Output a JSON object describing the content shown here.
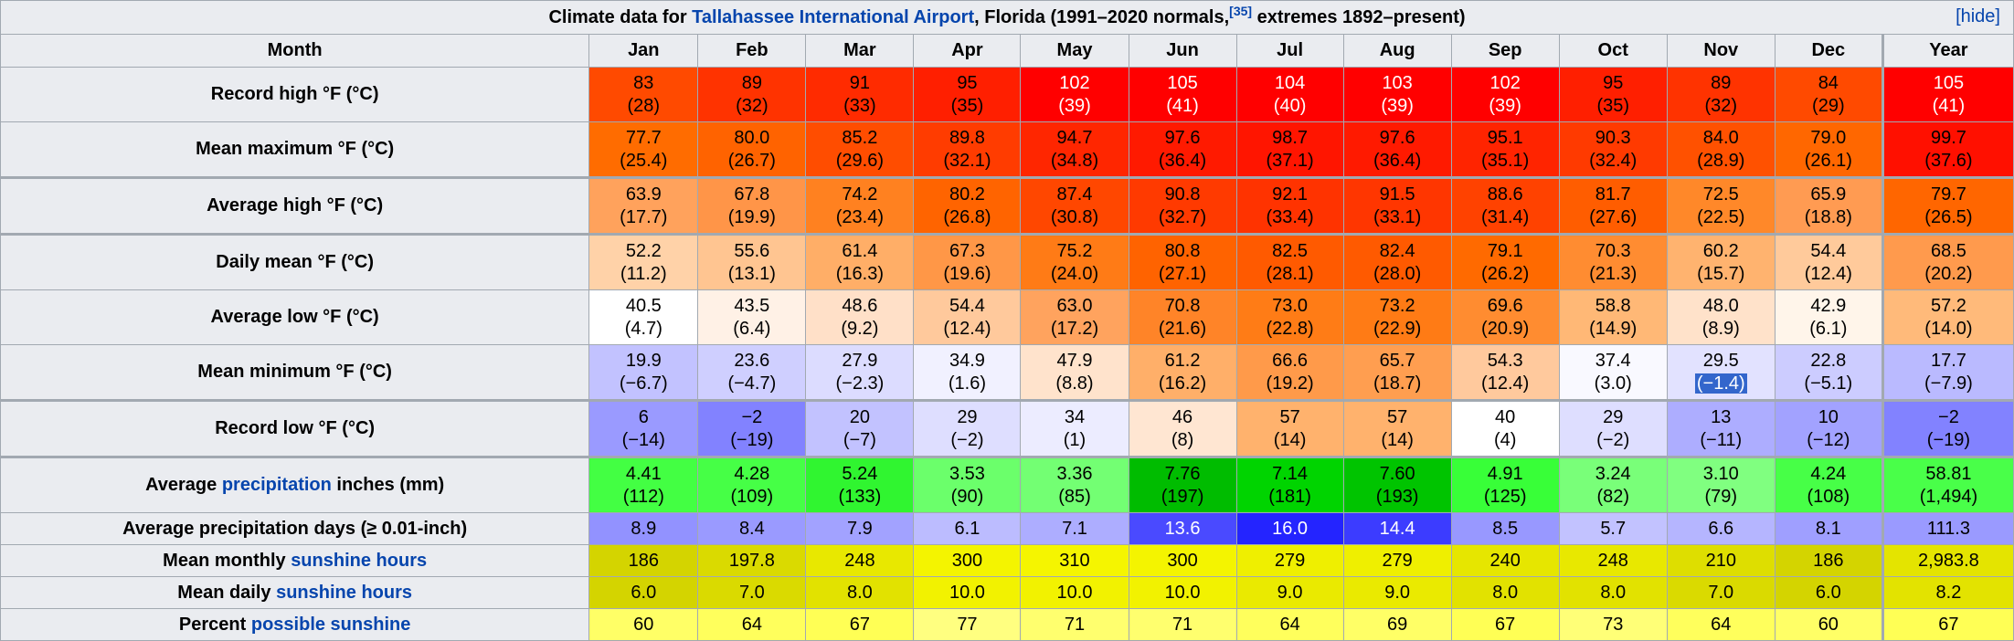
{
  "caption": {
    "pre": "Climate data for ",
    "link": "Tallahassee International Airport",
    "post": ", Florida (1991–2020 normals,",
    "ref": "[35]",
    "tail": " extremes 1892–present)",
    "hide": "[hide]"
  },
  "header": {
    "month": "Month",
    "months": [
      "Jan",
      "Feb",
      "Mar",
      "Apr",
      "May",
      "Jun",
      "Jul",
      "Aug",
      "Sep",
      "Oct",
      "Nov",
      "Dec",
      "Year"
    ]
  },
  "rows": [
    {
      "label": "Record high °F (°C)",
      "thick": false,
      "values": [
        "83",
        "89",
        "91",
        "95",
        "102",
        "105",
        "104",
        "103",
        "102",
        "95",
        "89",
        "84",
        "105"
      ],
      "sub": [
        "(28)",
        "(32)",
        "(33)",
        "(35)",
        "(39)",
        "(41)",
        "(40)",
        "(39)",
        "(39)",
        "(35)",
        "(32)",
        "(29)",
        "(41)"
      ],
      "colors": [
        "#ff4a00",
        "#ff3300",
        "#ff2b00",
        "#ff1f00",
        "#ff0000",
        "#ff0000",
        "#ff0000",
        "#ff0000",
        "#ff0000",
        "#ff1f00",
        "#ff3300",
        "#ff4a00",
        "#ff0000"
      ],
      "text": [
        "#000",
        "#000",
        "#000",
        "#000",
        "#fff",
        "#fff",
        "#fff",
        "#fff",
        "#fff",
        "#000",
        "#000",
        "#000",
        "#fff"
      ]
    },
    {
      "label": "Mean maximum °F (°C)",
      "thick": false,
      "values": [
        "77.7",
        "80.0",
        "85.2",
        "89.8",
        "94.7",
        "97.6",
        "98.7",
        "97.6",
        "95.1",
        "90.3",
        "84.0",
        "79.0",
        "99.7"
      ],
      "sub": [
        "(25.4)",
        "(26.7)",
        "(29.6)",
        "(32.1)",
        "(34.8)",
        "(36.4)",
        "(37.1)",
        "(36.4)",
        "(35.1)",
        "(32.4)",
        "(28.9)",
        "(26.1)",
        "(37.6)"
      ],
      "colors": [
        "#ff6c00",
        "#ff6300",
        "#ff4d00",
        "#ff3c00",
        "#ff2600",
        "#ff1a00",
        "#ff1500",
        "#ff1a00",
        "#ff2400",
        "#ff3a00",
        "#ff5100",
        "#ff6700",
        "#ff1000"
      ],
      "text": [
        "#000",
        "#000",
        "#000",
        "#000",
        "#000",
        "#000",
        "#000",
        "#000",
        "#000",
        "#000",
        "#000",
        "#000",
        "#000"
      ]
    },
    {
      "label": "Average high °F (°C)",
      "thick": true,
      "values": [
        "63.9",
        "67.8",
        "74.2",
        "80.2",
        "87.4",
        "90.8",
        "92.1",
        "91.5",
        "88.6",
        "81.7",
        "72.5",
        "65.9",
        "79.7"
      ],
      "sub": [
        "(17.7)",
        "(19.9)",
        "(23.4)",
        "(26.8)",
        "(30.8)",
        "(32.7)",
        "(33.4)",
        "(33.1)",
        "(31.4)",
        "(27.6)",
        "(22.5)",
        "(18.8)",
        "(26.5)"
      ],
      "colors": [
        "#ffa25c",
        "#ff9548",
        "#ff8120",
        "#ff6400",
        "#ff4700",
        "#ff3a00",
        "#ff3300",
        "#ff3600",
        "#ff4200",
        "#ff5d00",
        "#ff8829",
        "#ff9b52",
        "#ff6600"
      ],
      "text": [
        "#000",
        "#000",
        "#000",
        "#000",
        "#000",
        "#000",
        "#000",
        "#000",
        "#000",
        "#000",
        "#000",
        "#000",
        "#000"
      ]
    },
    {
      "label": "Daily mean °F (°C)",
      "thick": true,
      "values": [
        "52.2",
        "55.6",
        "61.4",
        "67.3",
        "75.2",
        "80.8",
        "82.5",
        "82.4",
        "79.1",
        "70.3",
        "60.2",
        "54.4",
        "68.5"
      ],
      "sub": [
        "(11.2)",
        "(13.1)",
        "(16.3)",
        "(19.6)",
        "(24.0)",
        "(27.1)",
        "(28.1)",
        "(28.0)",
        "(26.2)",
        "(21.3)",
        "(15.7)",
        "(12.4)",
        "(20.2)"
      ],
      "colors": [
        "#ffd2a8",
        "#ffc591",
        "#ffae67",
        "#ff9747",
        "#ff7b16",
        "#ff6300",
        "#ff5a00",
        "#ff5a00",
        "#ff6a00",
        "#ff8c31",
        "#ffb36f",
        "#ffca9b",
        "#ff9a4d"
      ],
      "text": [
        "#000",
        "#000",
        "#000",
        "#000",
        "#000",
        "#000",
        "#000",
        "#000",
        "#000",
        "#000",
        "#000",
        "#000",
        "#000"
      ]
    },
    {
      "label": "Average low °F (°C)",
      "thick": false,
      "values": [
        "40.5",
        "43.5",
        "48.6",
        "54.4",
        "63.0",
        "70.8",
        "73.0",
        "73.2",
        "69.6",
        "58.8",
        "48.0",
        "42.9",
        "57.2"
      ],
      "sub": [
        "(4.7)",
        "(6.4)",
        "(9.2)",
        "(12.4)",
        "(17.2)",
        "(21.6)",
        "(22.8)",
        "(22.9)",
        "(20.9)",
        "(14.9)",
        "(8.9)",
        "(6.1)",
        "(14.0)"
      ],
      "colors": [
        "#ffffff",
        "#fff1e6",
        "#ffe0c8",
        "#ffc99c",
        "#ffa35e",
        "#ff8428",
        "#ff7c16",
        "#ff7b15",
        "#ff8c30",
        "#ffb876",
        "#ffe2ca",
        "#fff5ea",
        "#ffba7a"
      ],
      "text": [
        "#000",
        "#000",
        "#000",
        "#000",
        "#000",
        "#000",
        "#000",
        "#000",
        "#000",
        "#000",
        "#000",
        "#000",
        "#000"
      ]
    },
    {
      "label": "Mean minimum °F (°C)",
      "thick": false,
      "values": [
        "19.9",
        "23.6",
        "27.9",
        "34.9",
        "47.9",
        "61.2",
        "66.6",
        "65.7",
        "54.3",
        "37.4",
        "29.5",
        "22.8",
        "17.7"
      ],
      "sub": [
        "(−6.7)",
        "(−4.7)",
        "(−2.3)",
        "(1.6)",
        "(8.8)",
        "(16.2)",
        "(19.2)",
        "(18.7)",
        "(12.4)",
        "(3.0)",
        "(−1.4)",
        "(−5.1)",
        "(−7.9)"
      ],
      "colors": [
        "#c2c2ff",
        "#cfcfff",
        "#dcdcff",
        "#f1f1ff",
        "#ffe3cc",
        "#ffaf69",
        "#ff9a4a",
        "#ff9e50",
        "#ffc99d",
        "#f9f9ff",
        "#e2e2ff",
        "#ccccff",
        "#babaff"
      ],
      "text": [
        "#000",
        "#000",
        "#000",
        "#000",
        "#000",
        "#000",
        "#000",
        "#000",
        "#000",
        "#000",
        "#000",
        "#000",
        "#000"
      ]
    },
    {
      "label": "Record low °F (°C)",
      "thick": true,
      "values": [
        "6",
        "−2",
        "20",
        "29",
        "34",
        "46",
        "57",
        "57",
        "40",
        "29",
        "13",
        "10",
        "−2"
      ],
      "sub": [
        "(−14)",
        "(−19)",
        "(−7)",
        "(−2)",
        "(1)",
        "(8)",
        "(14)",
        "(14)",
        "(4)",
        "(−2)",
        "(−11)",
        "(−12)",
        "(−19)"
      ],
      "colors": [
        "#9a9aff",
        "#8282ff",
        "#c2c2ff",
        "#dedeff",
        "#ececff",
        "#ffe6d2",
        "#ffb26d",
        "#ffb26d",
        "#ffffff",
        "#dedeff",
        "#adadff",
        "#a2a2ff",
        "#8282ff"
      ],
      "text": [
        "#000",
        "#000",
        "#000",
        "#000",
        "#000",
        "#000",
        "#000",
        "#000",
        "#000",
        "#000",
        "#000",
        "#000",
        "#000"
      ]
    },
    {
      "label_pre": "Average ",
      "label_link": "precipitation",
      "label_post": " inches (mm)",
      "thick": true,
      "values": [
        "4.41",
        "4.28",
        "5.24",
        "3.53",
        "3.36",
        "7.76",
        "7.14",
        "7.60",
        "4.91",
        "3.24",
        "3.10",
        "4.24",
        "58.81"
      ],
      "sub": [
        "(112)",
        "(109)",
        "(133)",
        "(90)",
        "(85)",
        "(197)",
        "(181)",
        "(193)",
        "(125)",
        "(82)",
        "(79)",
        "(108)",
        "(1,494)"
      ],
      "colors": [
        "#43ff43",
        "#46ff46",
        "#30f530",
        "#6bff6b",
        "#73ff73",
        "#00bc00",
        "#00d400",
        "#00c400",
        "#38ff38",
        "#79ff79",
        "#80ff80",
        "#47ff47",
        "#49ff49"
      ],
      "text": [
        "#000",
        "#000",
        "#000",
        "#000",
        "#000",
        "#000",
        "#000",
        "#000",
        "#000",
        "#000",
        "#000",
        "#000",
        "#000"
      ]
    },
    {
      "label": "Average precipitation days (≥ 0.01-inch)",
      "thick": false,
      "single": true,
      "values": [
        "8.9",
        "8.4",
        "7.9",
        "6.1",
        "7.1",
        "13.6",
        "16.0",
        "14.4",
        "8.5",
        "5.7",
        "6.6",
        "8.1",
        "111.3"
      ],
      "colors": [
        "#9292ff",
        "#9a9aff",
        "#a2a2ff",
        "#bcbcff",
        "#adadff",
        "#4a4aff",
        "#2424ff",
        "#3c3cff",
        "#9898ff",
        "#c2c2ff",
        "#b5b5ff",
        "#9f9fff",
        "#9a9aff"
      ],
      "text": [
        "#000",
        "#000",
        "#000",
        "#000",
        "#000",
        "#fff",
        "#fff",
        "#fff",
        "#000",
        "#000",
        "#000",
        "#000",
        "#000"
      ]
    },
    {
      "label_pre": "Mean monthly ",
      "label_link": "sunshine hours",
      "label_post": "",
      "thick": false,
      "single": true,
      "values": [
        "186",
        "197.8",
        "248",
        "300",
        "310",
        "300",
        "279",
        "279",
        "240",
        "248",
        "210",
        "186",
        "2,983.8"
      ],
      "colors": [
        "#d4d400",
        "#dada00",
        "#e8e800",
        "#f4f400",
        "#f5f500",
        "#f4f400",
        "#efef00",
        "#efef00",
        "#e6e600",
        "#e8e800",
        "#dede00",
        "#d4d400",
        "#e4e400"
      ],
      "text": [
        "#000",
        "#000",
        "#000",
        "#000",
        "#000",
        "#000",
        "#000",
        "#000",
        "#000",
        "#000",
        "#000",
        "#000",
        "#000"
      ]
    },
    {
      "label_pre": "Mean daily ",
      "label_link": "sunshine hours",
      "label_post": "",
      "thick": false,
      "single": true,
      "values": [
        "6.0",
        "7.0",
        "8.0",
        "10.0",
        "10.0",
        "10.0",
        "9.0",
        "9.0",
        "8.0",
        "8.0",
        "7.0",
        "6.0",
        "8.2"
      ],
      "colors": [
        "#d4d400",
        "#dada00",
        "#e2e200",
        "#f2f200",
        "#f2f200",
        "#f2f200",
        "#eaea00",
        "#eaea00",
        "#e2e200",
        "#e2e200",
        "#dada00",
        "#d4d400",
        "#e3e300"
      ],
      "text": [
        "#000",
        "#000",
        "#000",
        "#000",
        "#000",
        "#000",
        "#000",
        "#000",
        "#000",
        "#000",
        "#000",
        "#000",
        "#000"
      ]
    },
    {
      "label_pre": "Percent ",
      "label_link": "possible sunshine",
      "label_post": "",
      "thick": false,
      "single": true,
      "values": [
        "60",
        "64",
        "67",
        "77",
        "71",
        "71",
        "64",
        "69",
        "67",
        "73",
        "64",
        "60",
        "67"
      ],
      "colors": [
        "#ffff66",
        "#ffff5c",
        "#ffff55",
        "#ffff80",
        "#ffff6e",
        "#ffff6e",
        "#ffff5c",
        "#ffff66",
        "#ffff55",
        "#ffff77",
        "#ffff5c",
        "#ffff66",
        "#ffff55"
      ],
      "text": [
        "#000",
        "#000",
        "#000",
        "#000",
        "#000",
        "#000",
        "#000",
        "#000",
        "#000",
        "#000",
        "#000",
        "#000",
        "#000"
      ]
    }
  ],
  "selection": {
    "row": 5,
    "col": 10,
    "part": "sub"
  }
}
